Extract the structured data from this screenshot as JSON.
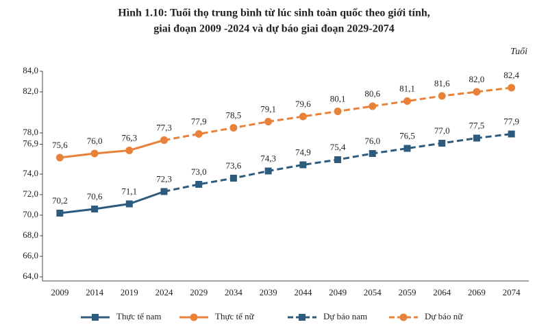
{
  "chart_data": {
    "type": "line",
    "title": [
      "Hình 1.10: Tuổi thọ trung bình từ lúc sinh toàn quốc theo giới tính,",
      "giai đoạn 2009 -2024 và dự báo giai đoạn 2029-2074"
    ],
    "y_label": "Tuổi",
    "categories": [
      "2009",
      "2014",
      "2019",
      "2024",
      "2029",
      "2034",
      "2039",
      "2044",
      "2049",
      "2054",
      "2059",
      "2064",
      "2069",
      "2074"
    ],
    "ylim": [
      64,
      84
    ],
    "yticks": [
      {
        "value": 84,
        "label": "84,0"
      },
      {
        "value": 82,
        "label": "82,0"
      },
      {
        "value": 78,
        "label": "78,0"
      },
      {
        "value": 76.9,
        "label": "76,9"
      },
      {
        "value": 74,
        "label": "74,0"
      },
      {
        "value": 72,
        "label": "72,0"
      },
      {
        "value": 70,
        "label": "70,0"
      },
      {
        "value": 68,
        "label": "68,0"
      },
      {
        "value": 66,
        "label": "66,0"
      },
      {
        "value": 64,
        "label": "64,0"
      }
    ],
    "series": [
      {
        "name": "Thực tế nam",
        "color": "#2c5b7e",
        "marker": "square",
        "dashed": false,
        "values": [
          70.2,
          70.6,
          71.1,
          72.3,
          null,
          null,
          null,
          null,
          null,
          null,
          null,
          null,
          null,
          null
        ],
        "value_labels": [
          "70,2",
          "70,6",
          "71,1",
          "72,3",
          null,
          null,
          null,
          null,
          null,
          null,
          null,
          null,
          null,
          null
        ]
      },
      {
        "name": "Thực tế nữ",
        "color": "#e8823a",
        "marker": "circle",
        "dashed": false,
        "values": [
          75.6,
          76.0,
          76.3,
          77.3,
          null,
          null,
          null,
          null,
          null,
          null,
          null,
          null,
          null,
          null
        ],
        "value_labels": [
          "75,6",
          "76,0",
          "76,3",
          "77,3",
          null,
          null,
          null,
          null,
          null,
          null,
          null,
          null,
          null,
          null
        ]
      },
      {
        "name": "Dự báo nam",
        "color": "#2c5b7e",
        "marker": "square",
        "dashed": true,
        "values": [
          null,
          null,
          null,
          72.3,
          73.0,
          73.6,
          74.3,
          74.9,
          75.4,
          76.0,
          76.5,
          77.0,
          77.5,
          77.9
        ],
        "value_labels": [
          null,
          null,
          null,
          null,
          "73,0",
          "73,6",
          "74,3",
          "74,9",
          "75,4",
          "76,0",
          "76,5",
          "77,0",
          "77,5",
          "77,9"
        ]
      },
      {
        "name": "Dự báo nữ",
        "color": "#e8823a",
        "marker": "circle",
        "dashed": true,
        "values": [
          null,
          null,
          null,
          77.3,
          77.9,
          78.5,
          79.1,
          79.6,
          80.1,
          80.6,
          81.1,
          81.6,
          82.0,
          82.4
        ],
        "value_labels": [
          null,
          null,
          null,
          null,
          "77,9",
          "78,5",
          "79,1",
          "79,6",
          "80,1",
          "80,6",
          "81,1",
          "81,6",
          "82,0",
          "82,4"
        ]
      }
    ]
  }
}
